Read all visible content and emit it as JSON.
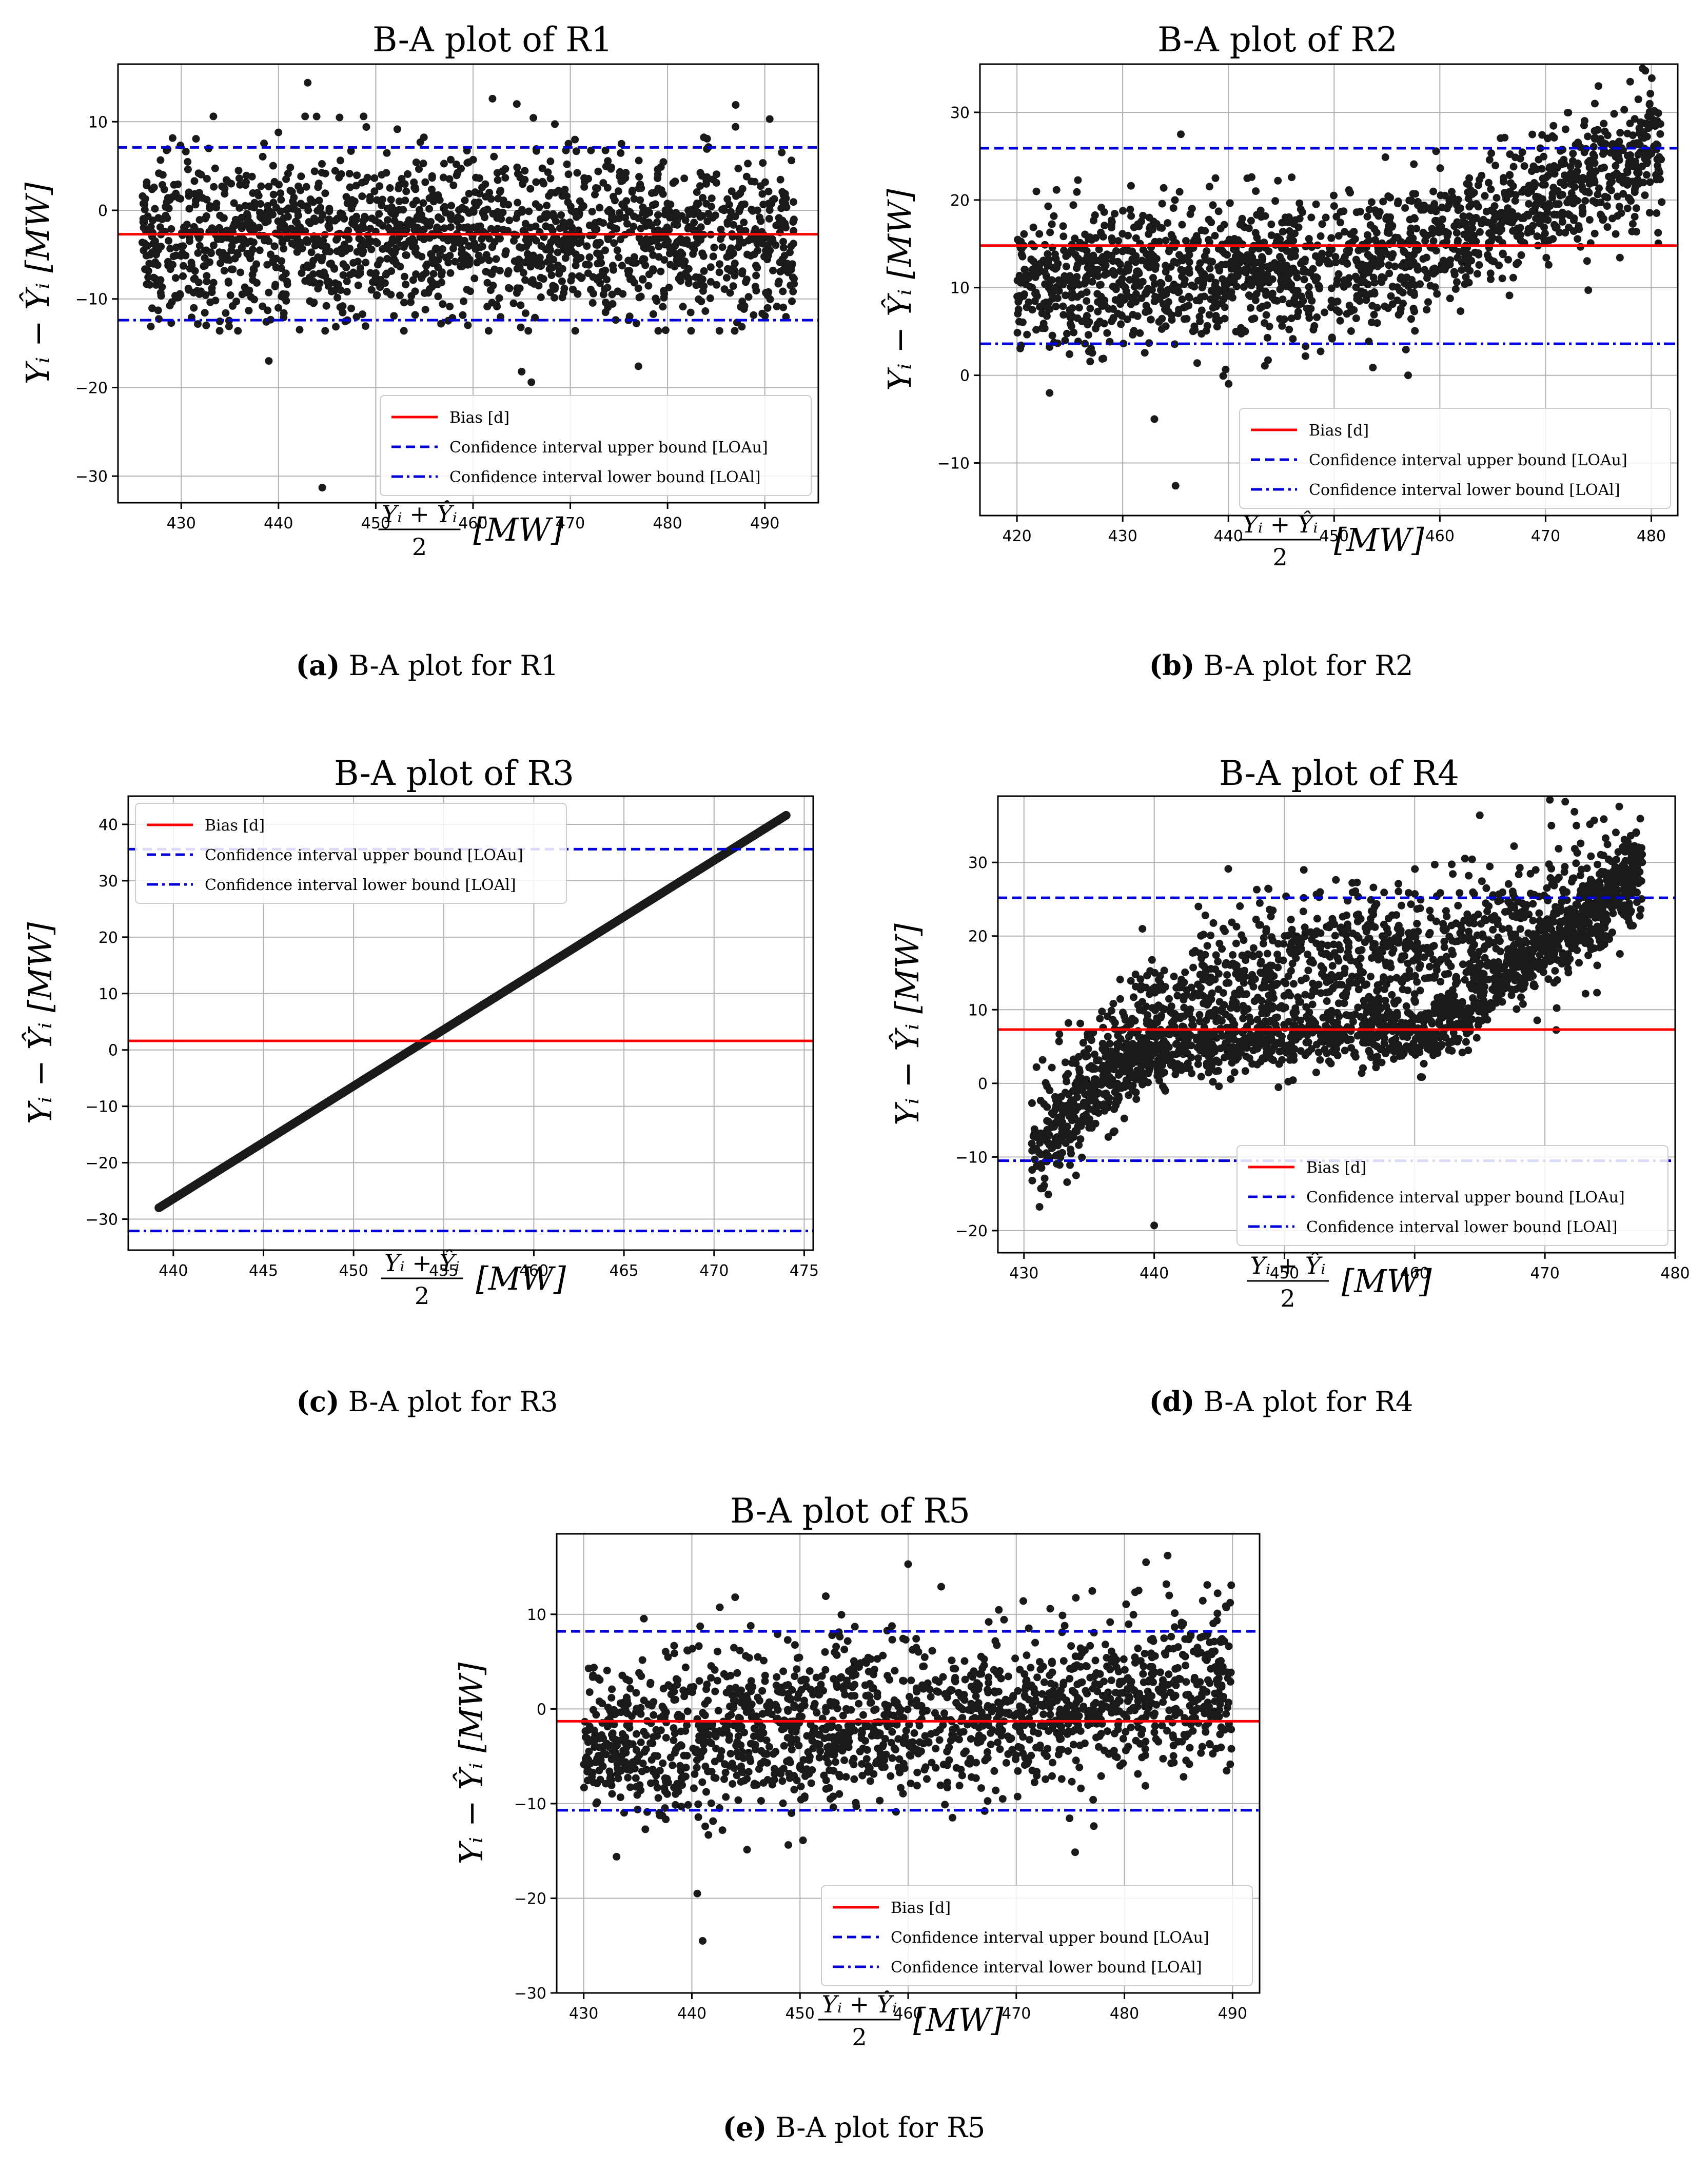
{
  "colors": {
    "bias": "#ff0000",
    "upper": "#0000dd",
    "lower": "#0000dd",
    "points": "#1a1a1a",
    "grid": "#b0b0b0"
  },
  "legend_labels": {
    "bias": "Bias [d]",
    "upper": "Confidence interval upper bound [LOAu]",
    "lower": "Confidence interval lower bound [LOAl]"
  },
  "axis_text": {
    "ylabel": "Yᵢ − Ŷᵢ [MW]",
    "xlabel_num": "Yᵢ + Ŷᵢ",
    "xlabel_den": "2",
    "xlabel_unit": "[MW]"
  },
  "chart_data": [
    {
      "id": "a",
      "type": "scatter",
      "title": "B-A plot of R1",
      "caption_label": "(a)",
      "caption_text": "B-A plot for R1",
      "xlim": [
        423.5,
        495.5
      ],
      "ylim": [
        -33,
        16.5
      ],
      "xticks": [
        430,
        440,
        450,
        460,
        470,
        480,
        490
      ],
      "yticks": [
        -30,
        -20,
        -10,
        0,
        10
      ],
      "bias": -2.7,
      "loa_upper": 7.1,
      "loa_lower": -12.4,
      "legend_position": "lower right",
      "scatter": {
        "mode": "band",
        "n": 1700,
        "x": [
          426,
          493
        ],
        "center": -3.0,
        "spread": 4.6
      },
      "outliers": [
        [
          444.5,
          -31.3
        ],
        [
          443.0,
          14.4
        ],
        [
          439.0,
          -17.0
        ],
        [
          466.0,
          -19.4
        ],
        [
          465.0,
          -18.2
        ],
        [
          477.0,
          -17.6
        ],
        [
          462.0,
          12.6
        ],
        [
          464.5,
          12.0
        ],
        [
          487.0,
          11.9
        ],
        [
          490.5,
          10.3
        ],
        [
          493.0,
          -8.3
        ]
      ]
    },
    {
      "id": "b",
      "type": "scatter",
      "title": "B-A plot of R2",
      "caption_label": "(b)",
      "caption_text": "B-A plot for R2",
      "xlim": [
        416.5,
        482.5
      ],
      "ylim": [
        -16,
        35.5
      ],
      "xticks": [
        420,
        430,
        440,
        450,
        460,
        470,
        480
      ],
      "yticks": [
        -10,
        0,
        10,
        20,
        30
      ],
      "bias": 14.8,
      "loa_upper": 25.9,
      "loa_lower": 3.6,
      "legend_position": "lower right",
      "scatter": {
        "mode": "piecewise",
        "n": 1700,
        "x": [
          420,
          481
        ],
        "knots": [
          [
            420,
            11
          ],
          [
            450,
            12
          ],
          [
            458,
            14
          ],
          [
            481,
            26
          ]
        ],
        "spread": 4.0
      },
      "outliers": [
        [
          435.0,
          -12.6
        ],
        [
          433.0,
          -5.0
        ],
        [
          435.5,
          27.5
        ],
        [
          457.0,
          0.0
        ],
        [
          475.0,
          33.0
        ],
        [
          478.0,
          33.5
        ],
        [
          480.5,
          18.5
        ]
      ]
    },
    {
      "id": "c",
      "type": "scatter",
      "title": "B-A plot of R3",
      "caption_label": "(c)",
      "caption_text": "B-A plot for R3",
      "xlim": [
        437.5,
        475.5
      ],
      "ylim": [
        -35.5,
        45
      ],
      "xticks": [
        440,
        445,
        450,
        455,
        460,
        465,
        470,
        475
      ],
      "yticks": [
        -30,
        -20,
        -10,
        0,
        10,
        20,
        30,
        40
      ],
      "bias": 1.6,
      "loa_upper": 35.6,
      "loa_lower": -32.1,
      "legend_position": "upper left",
      "scatter": {
        "mode": "line",
        "n": 520,
        "x": [
          439.2,
          474.0
        ],
        "y": [
          -28.0,
          41.6
        ]
      },
      "outliers": []
    },
    {
      "id": "d",
      "type": "scatter",
      "title": "B-A plot of R4",
      "caption_label": "(d)",
      "caption_text": "B-A plot for R4",
      "xlim": [
        428,
        480
      ],
      "ylim": [
        -23,
        39
      ],
      "xticks": [
        430,
        440,
        450,
        460,
        470,
        480
      ],
      "yticks": [
        -20,
        -10,
        0,
        10,
        20,
        30
      ],
      "bias": 7.3,
      "loa_upper": 25.2,
      "loa_lower": -10.5,
      "legend_position": "lower right",
      "scatter": {
        "mode": "r4",
        "n": 2600,
        "x": [
          430.5,
          477.5
        ]
      },
      "outliers": [
        [
          465.0,
          36.4
        ],
        [
          470.5,
          35.0
        ],
        [
          440.0,
          -19.3
        ],
        [
          434.0,
          -12.5
        ],
        [
          477.0,
          34.0
        ]
      ]
    },
    {
      "id": "e",
      "type": "scatter",
      "title": "B-A plot of R5",
      "caption_label": "(e)",
      "caption_text": "B-A plot for R5",
      "xlim": [
        427.5,
        492.5
      ],
      "ylim": [
        -30,
        18.5
      ],
      "xticks": [
        430,
        440,
        450,
        460,
        470,
        480,
        490
      ],
      "yticks": [
        -30,
        -20,
        -10,
        0,
        10
      ],
      "bias": -1.3,
      "loa_upper": 8.2,
      "loa_lower": -10.7,
      "legend_position": "lower right",
      "scatter": {
        "mode": "piecewise",
        "n": 1700,
        "x": [
          430,
          490
        ],
        "knots": [
          [
            430,
            -4
          ],
          [
            450,
            -2
          ],
          [
            470,
            -0.5
          ],
          [
            490,
            3
          ]
        ],
        "spread": 4.2
      },
      "outliers": [
        [
          440.5,
          -19.5
        ],
        [
          441.0,
          -24.5
        ],
        [
          460.0,
          15.3
        ],
        [
          484.0,
          16.2
        ],
        [
          482.0,
          15.5
        ],
        [
          444.0,
          11.8
        ]
      ]
    }
  ]
}
